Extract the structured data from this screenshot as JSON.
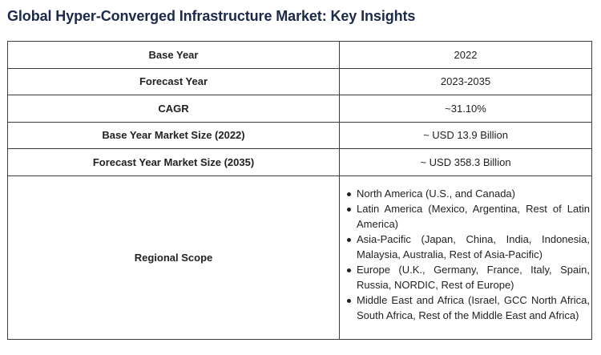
{
  "title": "Global Hyper-Converged Infrastructure Market: Key Insights",
  "rows": [
    {
      "label": "Base Year",
      "value": "2022"
    },
    {
      "label": "Forecast Year",
      "value": "2023-2035"
    },
    {
      "label": "CAGR",
      "value": "~31.10%"
    },
    {
      "label": "Base Year Market Size (2022)",
      "value": "~ USD 13.9 Billion"
    },
    {
      "label": "Forecast Year Market Size (2035)",
      "value": "~ USD 358.3 Billion"
    }
  ],
  "regional_scope": {
    "label": "Regional Scope",
    "items": [
      "North America (U.S., and Canada)",
      "Latin America (Mexico, Argentina, Rest of Latin America)",
      "Asia-Pacific (Japan, China, India, Indonesia, Malaysia, Australia, Rest of Asia-Pacific)",
      "Europe (U.K., Germany, France, Italy, Spain, Russia, NORDIC, Rest of Europe)",
      "Middle East and Africa (Israel, GCC North Africa, South Africa, Rest of the Middle East and Africa)"
    ]
  },
  "colors": {
    "title": "#1b2a4a",
    "border": "#3d3d3d",
    "text": "#222222"
  }
}
